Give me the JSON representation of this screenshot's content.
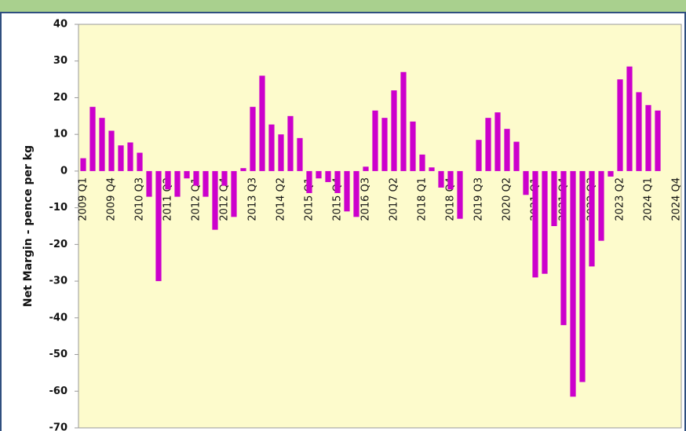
{
  "chart_data": {
    "type": "bar",
    "y_label": "Net Margin - pence per kg",
    "categories": [
      "2009 Q1",
      null,
      null,
      "2009 Q4",
      null,
      null,
      "2010 Q3",
      null,
      null,
      "2011 Q2",
      null,
      null,
      "2012 Q1",
      null,
      null,
      "2012 Q4",
      null,
      null,
      "2013 Q3",
      null,
      null,
      "2014 Q2",
      null,
      null,
      "2015 Q1",
      null,
      null,
      "2015 Q4",
      null,
      null,
      "2016 Q3",
      null,
      null,
      "2017 Q2",
      null,
      null,
      "2018 Q1",
      null,
      null,
      "2018 Q4",
      null,
      null,
      "2019 Q3",
      null,
      null,
      "2020 Q2",
      null,
      null,
      "2021 Q1",
      null,
      null,
      "2021 Q4",
      null,
      null,
      "2022 Q3",
      null,
      null,
      "2023 Q2",
      null,
      null,
      "2024 Q1",
      null,
      null,
      "2024 Q4"
    ],
    "values": [
      3.5,
      17.5,
      14.5,
      11,
      7,
      7.8,
      5,
      -7,
      -30,
      -5,
      -7,
      -2,
      -4,
      -7,
      -16,
      -4,
      -12.5,
      0.8,
      17.5,
      26,
      12.7,
      10,
      15,
      9,
      -6,
      -2,
      -3,
      -6,
      -11,
      -12.5,
      1.2,
      16.5,
      14.5,
      22,
      27,
      13.5,
      4.5,
      1,
      -4.5,
      -5,
      -13,
      0,
      8.5,
      14.5,
      16,
      11.5,
      8,
      -6.5,
      -29,
      -28,
      -15,
      -42,
      -61.5,
      -57.5,
      -26,
      -19,
      -1.5,
      25,
      28.5,
      21.5,
      18,
      16.5,
      null,
      null
    ],
    "color": "#cc00cc",
    "ylim": [
      -70,
      40
    ],
    "yticks": [
      -70,
      -60,
      -50,
      -40,
      -30,
      -20,
      -10,
      0,
      10,
      20,
      30,
      40
    ],
    "grid": false
  }
}
